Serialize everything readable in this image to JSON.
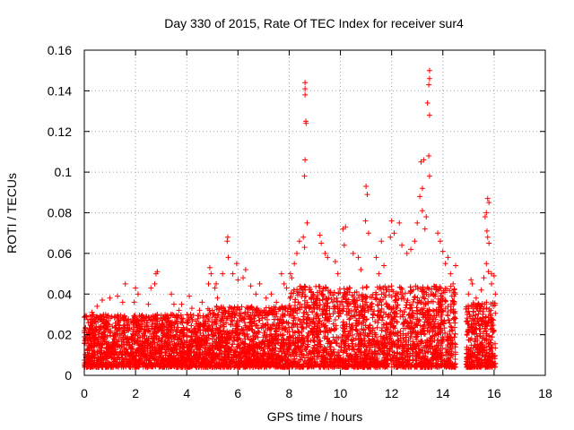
{
  "chart_data": {
    "type": "scatter",
    "title": "Day 330 of 2015, Rate Of TEC Index for receiver sur4",
    "xlabel": "GPS time / hours",
    "ylabel": "ROTI / TECUs",
    "xlim": [
      0,
      18
    ],
    "ylim": [
      0,
      0.16
    ],
    "x_ticks": [
      0,
      2,
      4,
      6,
      8,
      10,
      12,
      14,
      16,
      18
    ],
    "x_tick_labels": [
      "0",
      "2",
      "4",
      "6",
      "8",
      "10",
      "12",
      "14",
      "16",
      "18"
    ],
    "y_ticks": [
      0,
      0.02,
      0.04,
      0.06,
      0.08,
      0.1,
      0.12,
      0.14,
      0.16
    ],
    "y_tick_labels": [
      "0",
      "0.02",
      "0.04",
      "0.06",
      "0.08",
      "0.1",
      "0.12",
      "0.14",
      "0.16"
    ],
    "grid": true,
    "marker": "+",
    "color": "#ff0000",
    "data_gaps_hours": [
      [
        14.5,
        14.9
      ]
    ],
    "series": [
      {
        "name": "sur4",
        "points": [
          [
            8.62,
            0.144
          ],
          [
            8.62,
            0.141
          ],
          [
            8.62,
            0.138
          ],
          [
            8.65,
            0.125
          ],
          [
            8.66,
            0.124
          ],
          [
            8.62,
            0.106
          ],
          [
            8.6,
            0.098
          ],
          [
            8.7,
            0.075
          ],
          [
            8.55,
            0.068
          ],
          [
            8.6,
            0.063
          ],
          [
            13.48,
            0.15
          ],
          [
            13.48,
            0.146
          ],
          [
            13.45,
            0.143
          ],
          [
            13.4,
            0.134
          ],
          [
            13.48,
            0.128
          ],
          [
            13.15,
            0.105
          ],
          [
            13.25,
            0.106
          ],
          [
            13.45,
            0.108
          ],
          [
            13.48,
            0.098
          ],
          [
            13.2,
            0.092
          ],
          [
            13.1,
            0.088
          ],
          [
            13.2,
            0.081
          ],
          [
            13.35,
            0.078
          ],
          [
            13.0,
            0.075
          ],
          [
            13.3,
            0.072
          ],
          [
            11.0,
            0.093
          ],
          [
            11.05,
            0.089
          ],
          [
            10.98,
            0.076
          ],
          [
            11.1,
            0.07
          ],
          [
            10.2,
            0.073
          ],
          [
            10.1,
            0.072
          ],
          [
            10.15,
            0.064
          ],
          [
            9.2,
            0.069
          ],
          [
            9.25,
            0.065
          ],
          [
            9.4,
            0.06
          ],
          [
            9.5,
            0.058
          ],
          [
            12.0,
            0.076
          ],
          [
            12.1,
            0.07
          ],
          [
            11.95,
            0.068
          ],
          [
            12.3,
            0.075
          ],
          [
            12.4,
            0.064
          ],
          [
            12.6,
            0.06
          ],
          [
            12.9,
            0.066
          ],
          [
            12.75,
            0.062
          ],
          [
            13.8,
            0.07
          ],
          [
            13.9,
            0.066
          ],
          [
            14.0,
            0.061
          ],
          [
            14.2,
            0.058
          ],
          [
            14.1,
            0.055
          ],
          [
            11.4,
            0.058
          ],
          [
            11.6,
            0.066
          ],
          [
            11.7,
            0.054
          ],
          [
            11.5,
            0.05
          ],
          [
            10.5,
            0.06
          ],
          [
            10.7,
            0.058
          ],
          [
            10.8,
            0.052
          ],
          [
            9.8,
            0.056
          ],
          [
            9.9,
            0.05
          ],
          [
            8.3,
            0.06
          ],
          [
            8.4,
            0.066
          ],
          [
            8.2,
            0.055
          ],
          [
            8.05,
            0.05
          ],
          [
            8.1,
            0.048
          ],
          [
            7.7,
            0.05
          ],
          [
            7.8,
            0.045
          ],
          [
            7.9,
            0.043
          ],
          [
            5.6,
            0.068
          ],
          [
            5.58,
            0.066
          ],
          [
            5.62,
            0.058
          ],
          [
            5.4,
            0.05
          ],
          [
            5.8,
            0.05
          ],
          [
            5.95,
            0.055
          ],
          [
            6.0,
            0.047
          ],
          [
            6.2,
            0.048
          ],
          [
            6.3,
            0.052
          ],
          [
            6.5,
            0.044
          ],
          [
            6.7,
            0.04
          ],
          [
            6.85,
            0.045
          ],
          [
            4.9,
            0.053
          ],
          [
            4.95,
            0.05
          ],
          [
            5.1,
            0.043
          ],
          [
            5.15,
            0.045
          ],
          [
            5.2,
            0.038
          ],
          [
            4.85,
            0.045
          ],
          [
            2.8,
            0.05
          ],
          [
            2.85,
            0.051
          ],
          [
            2.75,
            0.045
          ],
          [
            2.6,
            0.043
          ],
          [
            2.5,
            0.035
          ],
          [
            2.0,
            0.043
          ],
          [
            2.1,
            0.04
          ],
          [
            1.95,
            0.036
          ],
          [
            1.6,
            0.045
          ],
          [
            1.5,
            0.036
          ],
          [
            1.3,
            0.039
          ],
          [
            1.0,
            0.038
          ],
          [
            0.7,
            0.037
          ],
          [
            0.5,
            0.034
          ],
          [
            0.3,
            0.031
          ],
          [
            3.4,
            0.04
          ],
          [
            3.5,
            0.035
          ],
          [
            3.7,
            0.032
          ],
          [
            3.8,
            0.035
          ],
          [
            4.1,
            0.039
          ],
          [
            4.2,
            0.033
          ],
          [
            4.5,
            0.032
          ],
          [
            4.6,
            0.036
          ],
          [
            7.1,
            0.038
          ],
          [
            7.3,
            0.04
          ],
          [
            7.5,
            0.036
          ],
          [
            14.5,
            0.054
          ],
          [
            14.3,
            0.05
          ],
          [
            14.4,
            0.045
          ],
          [
            15.75,
            0.087
          ],
          [
            15.8,
            0.085
          ],
          [
            15.7,
            0.08
          ],
          [
            15.65,
            0.078
          ],
          [
            15.72,
            0.071
          ],
          [
            15.75,
            0.068
          ],
          [
            15.8,
            0.065
          ],
          [
            15.7,
            0.055
          ],
          [
            15.78,
            0.051
          ],
          [
            15.9,
            0.05
          ],
          [
            16.0,
            0.049
          ],
          [
            15.6,
            0.048
          ],
          [
            15.5,
            0.042
          ],
          [
            15.1,
            0.047
          ],
          [
            15.15,
            0.045
          ],
          [
            15.0,
            0.04
          ],
          [
            15.3,
            0.038
          ],
          [
            15.4,
            0.035
          ],
          [
            15.2,
            0.033
          ],
          [
            15.9,
            0.045
          ],
          [
            16.05,
            0.04
          ]
        ]
      }
    ]
  }
}
